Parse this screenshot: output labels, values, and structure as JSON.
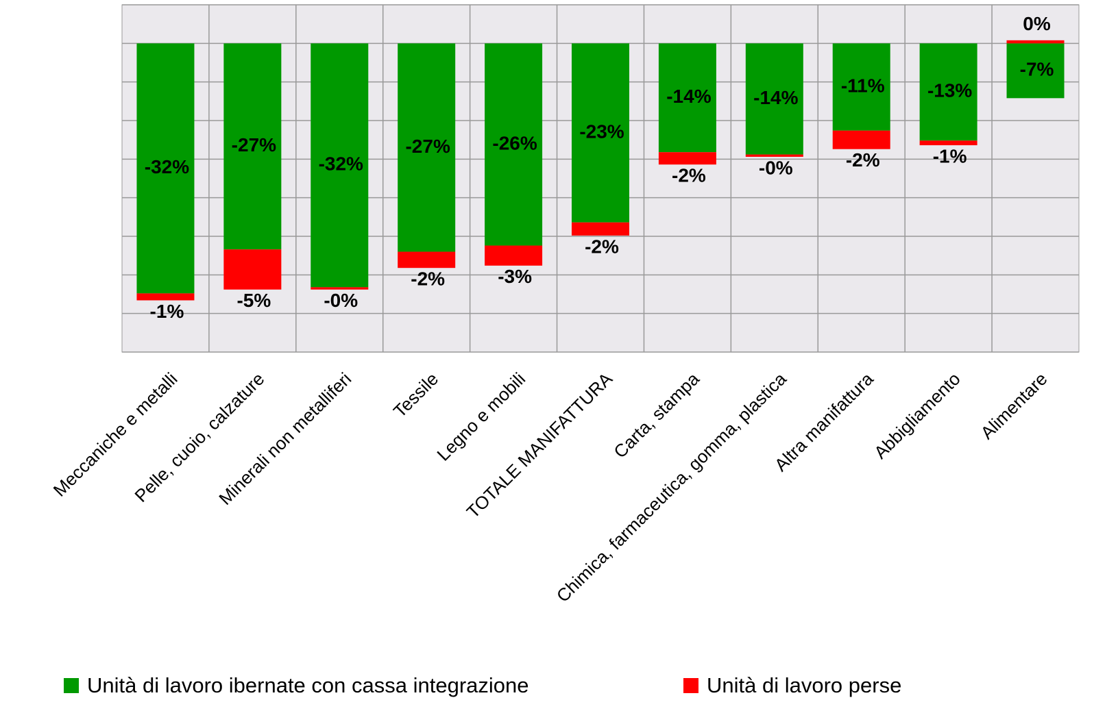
{
  "chart_data": {
    "type": "bar",
    "stacked": true,
    "categories": [
      "Meccaniche e metalli",
      "Pelle, cuoio, calzature",
      "Minerali non metalliferi",
      "Tessile",
      "Legno e mobili",
      "TOTALE MANIFATTURA",
      "Carta, stampa",
      "Chimica, farmaceutica, gomma, plastica",
      "Altra manifattura",
      "Abbigliamento",
      "Alimentare"
    ],
    "series": [
      {
        "name": "Unità di lavoro ibernate con cassa integrazione",
        "color": "#009900",
        "values": [
          -32.4,
          -26.7,
          -31.6,
          -27.0,
          -26.2,
          -23.2,
          -14.1,
          -14.4,
          -11.3,
          -12.6,
          -7.1
        ],
        "value_labels": [
          "-32%",
          "-27%",
          "-32%",
          "-27%",
          "-26%",
          "-23%",
          "-14%",
          "-14%",
          "-11%",
          "-13%",
          "-7%"
        ]
      },
      {
        "name": "Unità di lavoro perse",
        "color": "#ff0000",
        "values": [
          -0.9,
          -5.2,
          -0.3,
          -2.1,
          -2.6,
          -1.7,
          -1.6,
          -0.3,
          -2.4,
          -0.6,
          0.4
        ],
        "value_labels": [
          "-1%",
          "-5%",
          "-0%",
          "-2%",
          "-3%",
          "-2%",
          "-2%",
          "-0%",
          "-2%",
          "-1%",
          "0%"
        ]
      }
    ],
    "ylim": [
      -40,
      5
    ],
    "yticks": [
      -40,
      -35,
      -30,
      -25,
      -20,
      -15,
      -10,
      -5,
      0,
      5
    ],
    "grid": true,
    "legend": "bottom"
  }
}
